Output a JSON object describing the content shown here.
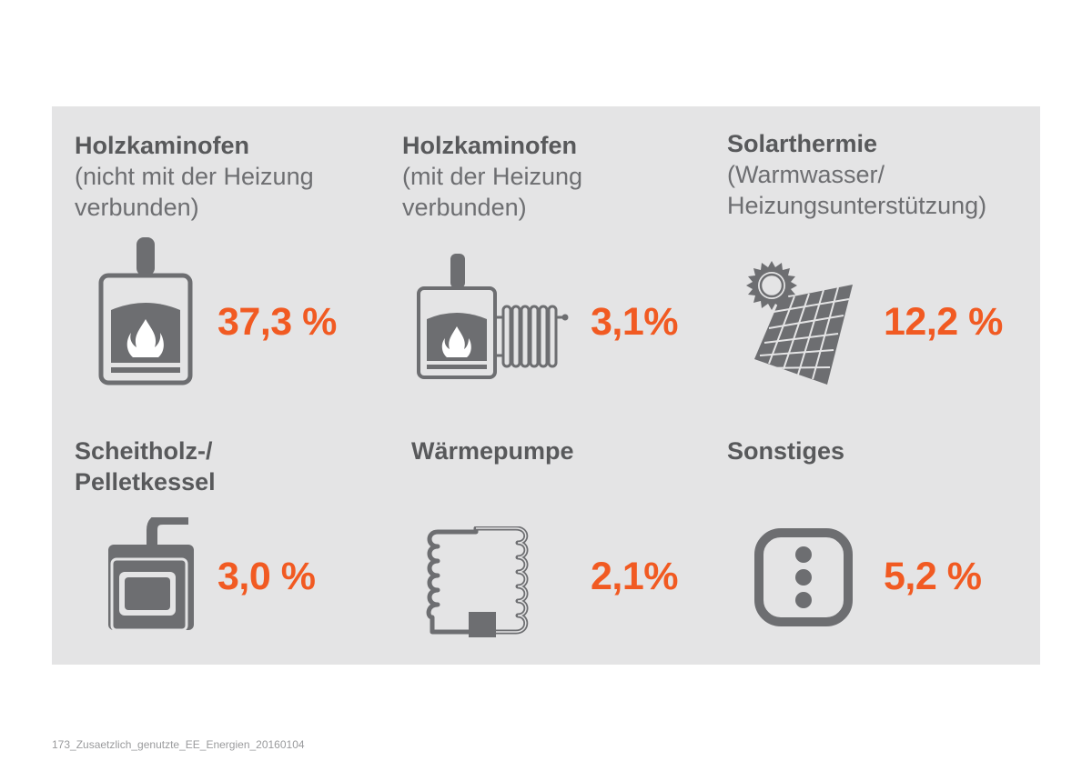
{
  "colors": {
    "panel_background": "#e4e4e5",
    "heading": "#58595b",
    "subheading": "#6d6e71",
    "value": "#f15a22",
    "icon": "#6d6e71"
  },
  "chart_data": {
    "type": "table",
    "unit": "%",
    "items": [
      {
        "title": "Holzkaminofen",
        "subtitle": "(nicht mit der Heizung\nverbunden)",
        "value": 37.3,
        "label": "37,3 %",
        "icon": "stove-icon"
      },
      {
        "title": "Holzkaminofen",
        "subtitle": "(mit der Heizung\nverbunden)",
        "value": 3.1,
        "label": "3,1%",
        "icon": "stove-radiator-icon"
      },
      {
        "title": "Solarthermie",
        "subtitle": "(Warmwasser/\nHeizungsunterstützung)",
        "value": 12.2,
        "label": "12,2 %",
        "icon": "solar-panel-icon"
      },
      {
        "title": "Scheitholz-/\nPelletkessel",
        "subtitle": "",
        "value": 3.0,
        "label": "3,0 %",
        "icon": "boiler-icon"
      },
      {
        "title": "Wärmepumpe",
        "subtitle": "",
        "value": 2.1,
        "label": "2,1%",
        "icon": "heat-pump-icon"
      },
      {
        "title": "Sonstiges",
        "subtitle": "",
        "value": 5.2,
        "label": "5,2 %",
        "icon": "other-icon"
      }
    ]
  },
  "footer": {
    "file_id": "173_Zusaetzlich_genutzte_EE_Energien_20160104"
  }
}
